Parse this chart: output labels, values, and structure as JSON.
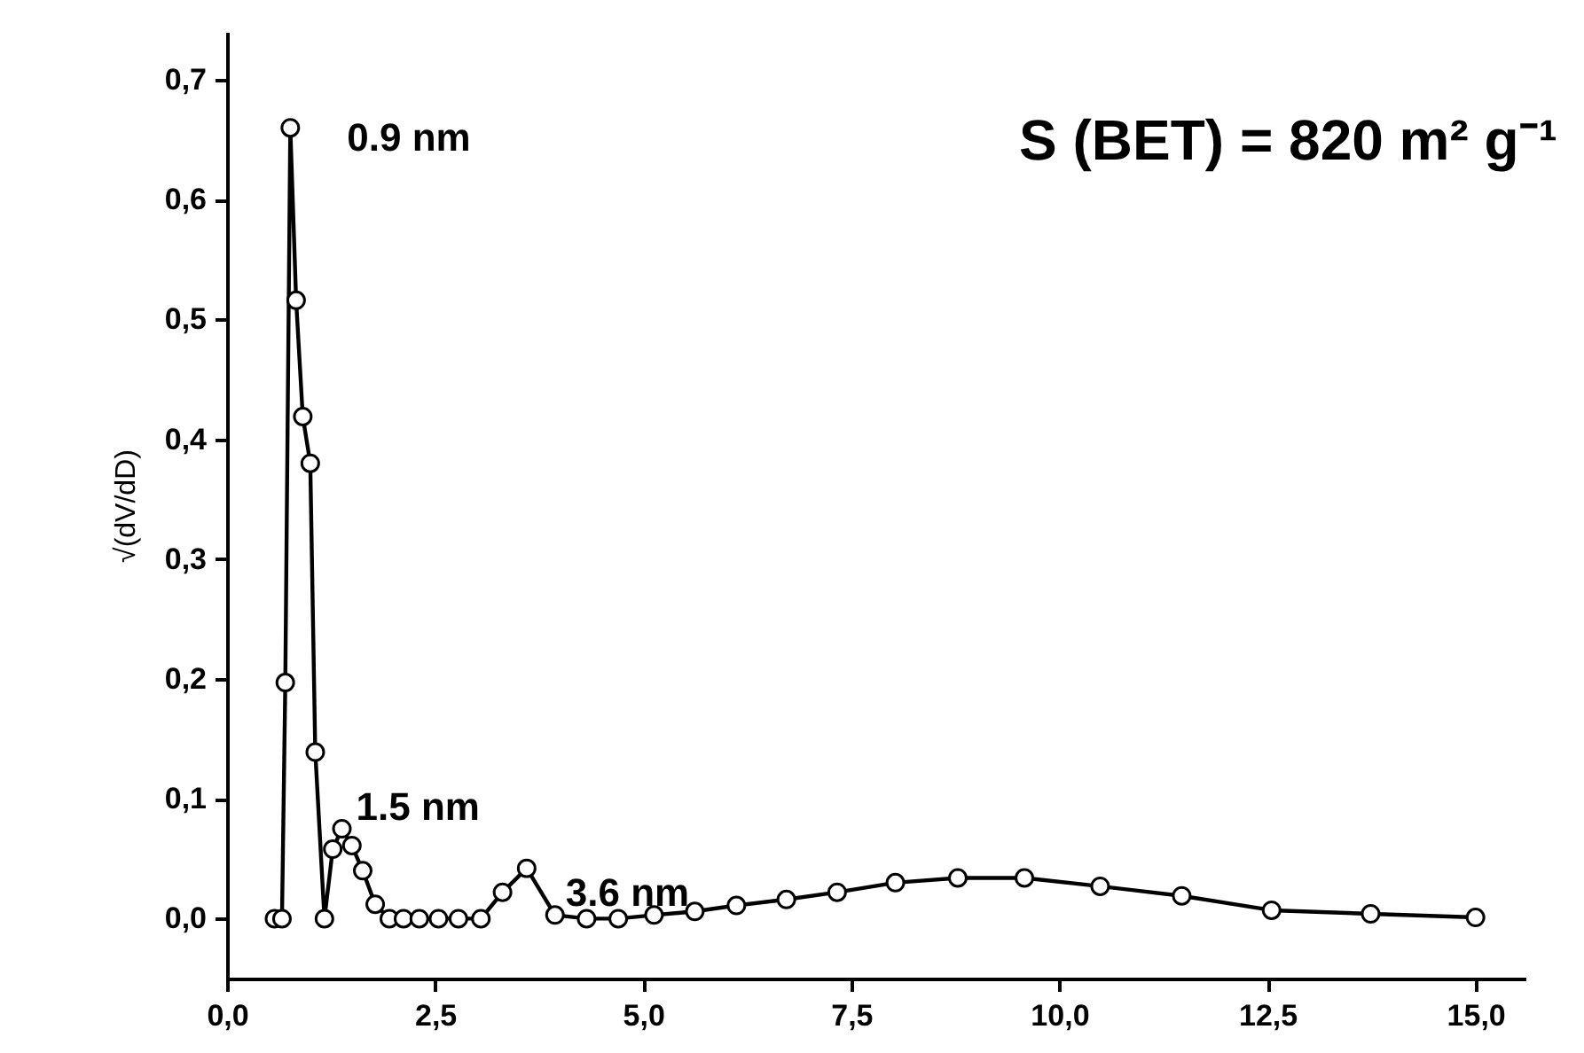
{
  "chart_data": {
    "type": "line",
    "ylabel": "√(dV/dD)",
    "x": [
      0.57,
      0.66,
      0.7,
      0.76,
      0.83,
      0.91,
      1.0,
      1.06,
      1.17,
      1.27,
      1.38,
      1.5,
      1.63,
      1.78,
      1.95,
      2.12,
      2.31,
      2.54,
      2.78,
      3.05,
      3.31,
      3.6,
      3.94,
      4.32,
      4.7,
      5.13,
      5.62,
      6.12,
      6.72,
      7.33,
      8.03,
      8.78,
      9.58,
      10.49,
      11.47,
      12.55,
      13.74,
      15.0
    ],
    "series": [
      {
        "color": "#000000",
        "values": [
          0,
          0,
          0.197,
          0.66,
          0.516,
          0.419,
          0.38,
          0.139,
          0,
          0.058,
          0.075,
          0.061,
          0.04,
          0.012,
          0,
          0,
          0,
          0,
          0,
          0,
          0.022,
          0.042,
          0.003,
          0,
          0,
          0.003,
          0.006,
          0.011,
          0.016,
          0.022,
          0.03,
          0.034,
          0.034,
          0.027,
          0.019,
          0.007,
          0.004,
          0.001
        ]
      }
    ],
    "xlim": [
      0,
      15.6
    ],
    "ylim": [
      -0.05,
      0.74
    ],
    "xticks": [
      {
        "value": 0,
        "label": "0,0"
      },
      {
        "value": 2.5,
        "label": "2,5"
      },
      {
        "value": 5,
        "label": "5,0"
      },
      {
        "value": 7.5,
        "label": "7,5"
      },
      {
        "value": 10,
        "label": "10,0"
      },
      {
        "value": 12.5,
        "label": "12,5"
      },
      {
        "value": 15,
        "label": "15,0"
      }
    ],
    "yticks": [
      {
        "value": 0,
        "label": "0,0"
      },
      {
        "value": 0.1,
        "label": "0,1"
      },
      {
        "value": 0.2,
        "label": "0,2"
      },
      {
        "value": 0.3,
        "label": "0,3"
      },
      {
        "value": 0.4,
        "label": "0,4"
      },
      {
        "value": 0.5,
        "label": "0,5"
      },
      {
        "value": 0.6,
        "label": "0,6"
      },
      {
        "value": 0.7,
        "label": "0,7"
      }
    ],
    "annotations": [
      {
        "text": "0.9 nm",
        "x": 0.76,
        "y": 0.66
      },
      {
        "text": "1.5 nm",
        "x": 1.38,
        "y": 0.075
      },
      {
        "text": "3.6 nm",
        "x": 3.6,
        "y": 0.042
      },
      "S (BET) = 820 m² g⁻¹"
    ],
    "marker": "circle",
    "line_style": "solid",
    "grid": false
  }
}
